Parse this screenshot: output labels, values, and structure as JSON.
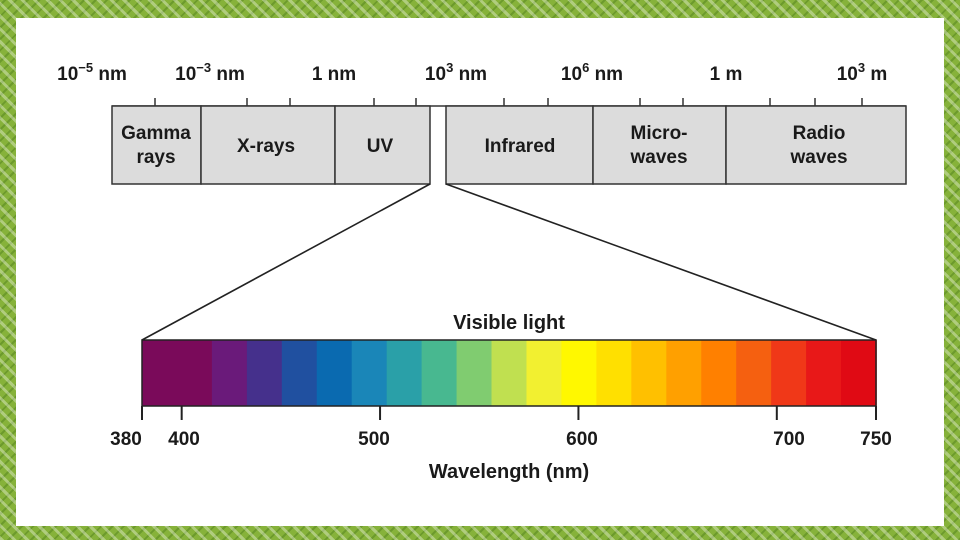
{
  "scale_labels": [
    {
      "base": "10",
      "exp": "−5",
      "unit": " nm"
    },
    {
      "base": "10",
      "exp": "−3",
      "unit": " nm"
    },
    {
      "base": "1 nm",
      "exp": "",
      "unit": ""
    },
    {
      "base": "10",
      "exp": "3",
      "unit": " nm"
    },
    {
      "base": "10",
      "exp": "6",
      "unit": " nm"
    },
    {
      "base": "1 m",
      "exp": "",
      "unit": ""
    },
    {
      "base": "10",
      "exp": "3",
      "unit": " m"
    }
  ],
  "bands": [
    {
      "line1": "Gamma",
      "line2": "rays"
    },
    {
      "line1": "X-rays",
      "line2": ""
    },
    {
      "line1": "UV",
      "line2": ""
    },
    {
      "line1": "Infrared",
      "line2": ""
    },
    {
      "line1": "Micro-",
      "line2": "waves"
    },
    {
      "line1": "Radio",
      "line2": "waves"
    }
  ],
  "visible": {
    "title": "Visible light",
    "ticks": [
      "380",
      "400",
      "500",
      "600",
      "700",
      "750"
    ],
    "axis_label": "Wavelength (nm)"
  },
  "colors": {
    "band_fill": "#dcdcdc",
    "frame": "#86b23a",
    "spectrum": [
      "#7a0a5a",
      "#7a0a5a",
      "#6a1a7a",
      "#45308c",
      "#2050a0",
      "#0a6ab0",
      "#1a86b8",
      "#2aa0a8",
      "#48b890",
      "#80cc70",
      "#c0e050",
      "#f2f030",
      "#fff800",
      "#ffe000",
      "#ffc000",
      "#ffa000",
      "#ff8000",
      "#f56010",
      "#f03818",
      "#e81818",
      "#e00a14"
    ]
  }
}
